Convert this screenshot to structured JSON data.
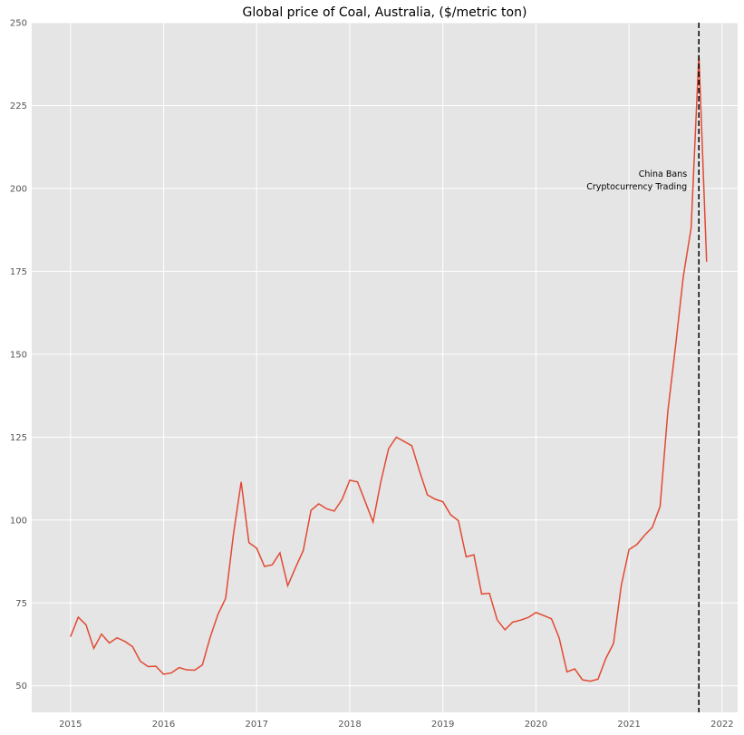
{
  "chart_data": {
    "type": "line",
    "title": "Global price of Coal, Australia, ($/metric ton)",
    "xlabel": "",
    "ylabel": "",
    "xlim": [
      "2014-08-01",
      "2022-03-01"
    ],
    "ylim": [
      42,
      250
    ],
    "x_ticks": [
      "2015",
      "2016",
      "2017",
      "2018",
      "2019",
      "2020",
      "2021",
      "2022"
    ],
    "y_ticks": [
      50,
      75,
      100,
      125,
      150,
      175,
      200,
      225,
      250
    ],
    "grid": true,
    "line_color": "#E24A33",
    "background_color": "#E5E5E5",
    "grid_color": "#FFFFFF",
    "series": [
      {
        "x": [
          "2015-01",
          "2015-02",
          "2015-03",
          "2015-04",
          "2015-05",
          "2015-06",
          "2015-07",
          "2015-08",
          "2015-09",
          "2015-10",
          "2015-11",
          "2015-12",
          "2016-01",
          "2016-02",
          "2016-03",
          "2016-04",
          "2016-05",
          "2016-06",
          "2016-07",
          "2016-08",
          "2016-09",
          "2016-10",
          "2016-11",
          "2016-12",
          "2017-01",
          "2017-02",
          "2017-03",
          "2017-04",
          "2017-05",
          "2017-06",
          "2017-07",
          "2017-08",
          "2017-09",
          "2017-10",
          "2017-11",
          "2017-12",
          "2018-01",
          "2018-02",
          "2018-03",
          "2018-04",
          "2018-05",
          "2018-06",
          "2018-07",
          "2018-08",
          "2018-09",
          "2018-10",
          "2018-11",
          "2018-12",
          "2019-01",
          "2019-02",
          "2019-03",
          "2019-04",
          "2019-05",
          "2019-06",
          "2019-07",
          "2019-08",
          "2019-09",
          "2019-10",
          "2019-11",
          "2019-12",
          "2020-01",
          "2020-02",
          "2020-03",
          "2020-04",
          "2020-05",
          "2020-06",
          "2020-07",
          "2020-08",
          "2020-09",
          "2020-10",
          "2020-11",
          "2020-12",
          "2021-01",
          "2021-02",
          "2021-03",
          "2021-04",
          "2021-05",
          "2021-06",
          "2021-07",
          "2021-08",
          "2021-09",
          "2021-10",
          "2021-11"
        ],
        "values": [
          64.8,
          70.7,
          68.4,
          61.3,
          65.6,
          62.9,
          64.5,
          63.4,
          61.8,
          57.4,
          55.8,
          55.9,
          53.5,
          53.9,
          55.5,
          54.8,
          54.7,
          56.3,
          64.6,
          71.5,
          76.4,
          95.6,
          111.5,
          93.2,
          91.5,
          86.0,
          86.5,
          90.1,
          80.2,
          85.6,
          90.8,
          102.9,
          104.9,
          103.4,
          102.7,
          106.2,
          112.0,
          111.5,
          105.5,
          99.4,
          111.5,
          121.5,
          125.0,
          123.7,
          122.4,
          114.7,
          107.6,
          106.3,
          105.5,
          101.6,
          99.8,
          88.9,
          89.5,
          77.7,
          77.9,
          69.9,
          66.9,
          69.2,
          69.8,
          70.6,
          72.1,
          71.2,
          70.2,
          64.4,
          54.2,
          55.1,
          51.8,
          51.4,
          52.0,
          58.2,
          62.8,
          80.3,
          91.1,
          92.6,
          95.4,
          97.8,
          104.1,
          132.8,
          152.6,
          173.6,
          188.0,
          240.3,
          177.9
        ]
      }
    ],
    "annotations": [
      {
        "type": "vline",
        "x": "2021-10",
        "style": "dashed",
        "color": "#000000",
        "label_lines": [
          "China Bans",
          "Cryptocurrency Trading"
        ],
        "label_y": 200
      }
    ]
  }
}
